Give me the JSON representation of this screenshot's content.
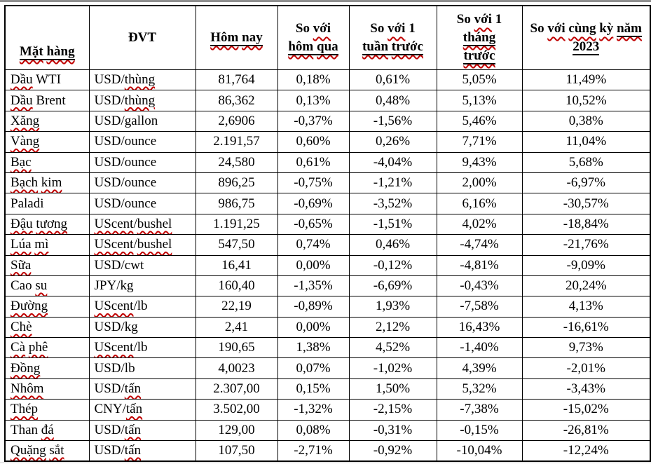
{
  "colors": {
    "table_border": "#000000",
    "spellcheck_red": "#c00000",
    "top_edge_gray": "#8f8f8f",
    "text": "#000000",
    "background": "#ffffff"
  },
  "table": {
    "columns": [
      {
        "id": "name",
        "label_plain": "",
        "label_underlined": "Mặt hàng"
      },
      {
        "id": "unit",
        "label_plain": "ĐVT",
        "label_underlined": ""
      },
      {
        "id": "today",
        "label_plain": "",
        "label_underlined": "Hôm nay"
      },
      {
        "id": "vs_yesterday",
        "label_plain": "So với",
        "label_underlined": "hôm qua"
      },
      {
        "id": "vs_week",
        "label_plain": "So với 1",
        "label_underlined": "tuần trước"
      },
      {
        "id": "vs_month",
        "label_plain": "So với 1",
        "label_underlined": "tháng trước"
      },
      {
        "id": "vs_2023",
        "label_plain": "So với cùng kỳ",
        "label_underlined": "năm 2023"
      }
    ],
    "rows": [
      {
        "name": "Dầu WTI",
        "unit": "USD/thùng",
        "today": "81,764",
        "vs_yesterday": "0,18%",
        "vs_week": "0,61%",
        "vs_month": "5,05%",
        "vs_2023": "11,49%"
      },
      {
        "name": "Dầu Brent",
        "unit": "USD/thùng",
        "today": "86,362",
        "vs_yesterday": "0,13%",
        "vs_week": "0,48%",
        "vs_month": "5,13%",
        "vs_2023": "10,52%"
      },
      {
        "name": "Xăng",
        "unit": "USD/gallon",
        "today": "2,6906",
        "vs_yesterday": "-0,37%",
        "vs_week": "-1,56%",
        "vs_month": "5,46%",
        "vs_2023": "0,38%"
      },
      {
        "name": "Vàng",
        "unit": "USD/ounce",
        "today": "2.191,57",
        "vs_yesterday": "0,60%",
        "vs_week": "0,26%",
        "vs_month": "7,71%",
        "vs_2023": "11,04%"
      },
      {
        "name": "Bạc",
        "unit": "USD/ounce",
        "today": "24,580",
        "vs_yesterday": "0,61%",
        "vs_week": "-4,04%",
        "vs_month": "9,43%",
        "vs_2023": "5,68%"
      },
      {
        "name": "Bạch kim",
        "unit": "USD/ounce",
        "today": "896,25",
        "vs_yesterday": "-0,75%",
        "vs_week": "-1,21%",
        "vs_month": "2,00%",
        "vs_2023": "-6,97%"
      },
      {
        "name": "Paladi",
        "unit": "USD/ounce",
        "today": "986,75",
        "vs_yesterday": "-0,69%",
        "vs_week": "-3,52%",
        "vs_month": "6,16%",
        "vs_2023": "-30,57%"
      },
      {
        "name": "Đậu tương",
        "unit": "UScent/bushel",
        "today": "1.191,25",
        "vs_yesterday": "-0,65%",
        "vs_week": "-1,51%",
        "vs_month": "4,02%",
        "vs_2023": "-18,84%"
      },
      {
        "name": "Lúa mì",
        "unit": "UScent/bushel",
        "today": "547,50",
        "vs_yesterday": "0,74%",
        "vs_week": "0,46%",
        "vs_month": "-4,74%",
        "vs_2023": "-21,76%"
      },
      {
        "name": "Sữa",
        "unit": "USD/cwt",
        "today": "16,41",
        "vs_yesterday": "0,00%",
        "vs_week": "-0,12%",
        "vs_month": "-4,81%",
        "vs_2023": "-9,09%"
      },
      {
        "name": "Cao su",
        "unit": "JPY/kg",
        "today": "160,40",
        "vs_yesterday": "-1,35%",
        "vs_week": "-6,69%",
        "vs_month": "-0,43%",
        "vs_2023": "20,24%"
      },
      {
        "name": "Đường",
        "unit": "UScent/lb",
        "today": "22,19",
        "vs_yesterday": "-0,89%",
        "vs_week": "1,93%",
        "vs_month": "-7,58%",
        "vs_2023": "4,13%"
      },
      {
        "name": "Chè",
        "unit": "USD/kg",
        "today": "2,41",
        "vs_yesterday": "0,00%",
        "vs_week": "2,12%",
        "vs_month": "16,43%",
        "vs_2023": "-16,61%"
      },
      {
        "name": "Cà phê",
        "unit": "UScent/lb",
        "today": "190,65",
        "vs_yesterday": "1,38%",
        "vs_week": "4,52%",
        "vs_month": "-1,40%",
        "vs_2023": "9,73%"
      },
      {
        "name": "Đồng",
        "unit": "USD/lb",
        "today": "4,0023",
        "vs_yesterday": "0,07%",
        "vs_week": "-1,02%",
        "vs_month": "4,39%",
        "vs_2023": "-2,01%"
      },
      {
        "name": "Nhôm",
        "unit": "USD/tấn",
        "today": "2.307,00",
        "vs_yesterday": "0,15%",
        "vs_week": "1,50%",
        "vs_month": "5,32%",
        "vs_2023": "-3,43%"
      },
      {
        "name": "Thép",
        "unit": "CNY/tấn",
        "today": "3.502,00",
        "vs_yesterday": "-1,32%",
        "vs_week": "-2,15%",
        "vs_month": "-7,38%",
        "vs_2023": "-15,02%"
      },
      {
        "name": "Than đá",
        "unit": "USD/tấn",
        "today": "129,00",
        "vs_yesterday": "0,08%",
        "vs_week": "-0,31%",
        "vs_month": "-0,15%",
        "vs_2023": "-26,81%"
      },
      {
        "name": "Quặng sắt",
        "unit": "USD/tấn",
        "today": "107,50",
        "vs_yesterday": "-2,71%",
        "vs_week": "-0,92%",
        "vs_month": "-10,04%",
        "vs_2023": "-12,24%"
      }
    ]
  }
}
